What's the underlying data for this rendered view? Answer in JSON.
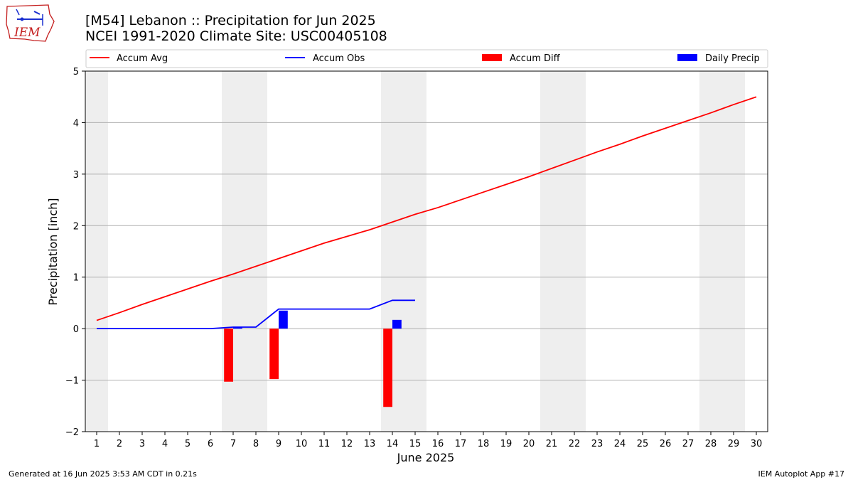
{
  "header": {
    "title_line1": "[M54] Lebanon :: Precipitation for Jun 2025",
    "title_line2": "NCEI 1991-2020 Climate Site: USC00405108"
  },
  "logo": {
    "text": "IEM",
    "icon": "iem-iowa-logo-icon",
    "color": "#c41d1d"
  },
  "footer": {
    "left": "Generated at 16 Jun 2025 3:53 AM CDT in 0.21s",
    "right": "IEM Autoplot App #17"
  },
  "chart_data": {
    "type": "bar",
    "title": "[M54] Lebanon :: Precipitation for Jun 2025",
    "subtitle": "NCEI 1991-2020 Climate Site: USC00405108",
    "xlabel": "June 2025",
    "ylabel": "Precipitation [inch]",
    "xlim": [
      0.5,
      30.5
    ],
    "ylim": [
      -2,
      5
    ],
    "grid": true,
    "legend_position": "top",
    "x_ticks": [
      1,
      2,
      3,
      4,
      5,
      6,
      7,
      8,
      9,
      10,
      11,
      12,
      13,
      14,
      15,
      16,
      17,
      18,
      19,
      20,
      21,
      22,
      23,
      24,
      25,
      26,
      27,
      28,
      29,
      30
    ],
    "y_ticks": [
      -2,
      -1,
      0,
      1,
      2,
      3,
      4,
      5
    ],
    "weekend_shading": [
      [
        0.5,
        1.5
      ],
      [
        6.5,
        8.5
      ],
      [
        13.5,
        15.5
      ],
      [
        20.5,
        22.5
      ],
      [
        27.5,
        29.5
      ]
    ],
    "colors": {
      "avg": "#ff0000",
      "obs": "#0000ff",
      "diff": "#ff0000",
      "daily": "#0000ff",
      "shade": "#eeeeee",
      "grid": "#b0b0b0"
    },
    "legend": [
      "Accum Avg",
      "Accum Obs",
      "Accum Diff",
      "Daily Precip"
    ],
    "series": [
      {
        "name": "Accum Avg",
        "kind": "line",
        "x": [
          1,
          2,
          3,
          4,
          5,
          6,
          7,
          8,
          9,
          10,
          11,
          12,
          13,
          14,
          15,
          16,
          17,
          18,
          19,
          20,
          21,
          22,
          23,
          24,
          25,
          26,
          27,
          28,
          29,
          30
        ],
        "values": [
          0.16,
          0.31,
          0.47,
          0.62,
          0.77,
          0.92,
          1.06,
          1.21,
          1.36,
          1.51,
          1.66,
          1.79,
          1.92,
          2.07,
          2.22,
          2.35,
          2.5,
          2.65,
          2.8,
          2.95,
          3.11,
          3.27,
          3.43,
          3.58,
          3.74,
          3.89,
          4.04,
          4.19,
          4.35,
          4.5
        ]
      },
      {
        "name": "Accum Obs",
        "kind": "line",
        "x": [
          1,
          2,
          3,
          4,
          5,
          6,
          7,
          8,
          9,
          10,
          11,
          12,
          13,
          14,
          15
        ],
        "values": [
          0,
          0,
          0,
          0,
          0,
          0,
          0.03,
          0.03,
          0.38,
          0.38,
          0.38,
          0.38,
          0.38,
          0.55,
          0.55
        ]
      },
      {
        "name": "Accum Diff",
        "kind": "bar",
        "x": [
          7,
          9,
          14
        ],
        "values": [
          -1.03,
          -0.98,
          -1.52
        ]
      },
      {
        "name": "Daily Precip",
        "kind": "bar",
        "x": [
          7,
          9,
          14
        ],
        "values": [
          0.03,
          0.35,
          0.17
        ]
      }
    ]
  }
}
